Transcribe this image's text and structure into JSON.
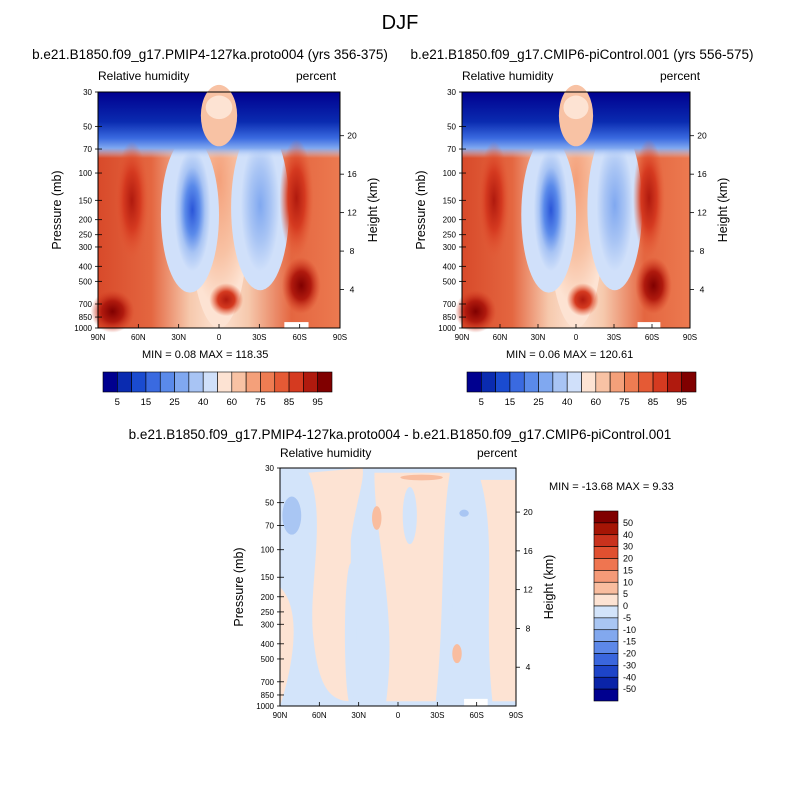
{
  "season": "DJF",
  "chart_data": [
    {
      "type": "heatmap",
      "title": "b.e21.B1850.f09_g17.PMIP4-127ka.proto004 (yrs 356-375)",
      "left_label": "Relative humidity",
      "right_label": "percent",
      "ylabel": "Pressure (mb)",
      "y2label": "Height (km)",
      "x_ticks": [
        "90N",
        "60N",
        "30N",
        "0",
        "30S",
        "60S",
        "90S"
      ],
      "y_ticks": [
        "30",
        "50",
        "70",
        "100",
        "150",
        "200",
        "250",
        "300",
        "400",
        "500",
        "700",
        "850",
        "1000"
      ],
      "y2_ticks": [
        "20",
        "16",
        "12",
        "8",
        "4"
      ],
      "min": 0.08,
      "max": 118.35,
      "stats_text": "MIN =   0.08  MAX = 118.35",
      "colorbar_labels": [
        "5",
        "15",
        "25",
        "40",
        "60",
        "75",
        "85",
        "95"
      ]
    },
    {
      "type": "heatmap",
      "title": "b.e21.B1850.f09_g17.CMIP6-piControl.001 (yrs 556-575)",
      "left_label": "Relative humidity",
      "right_label": "percent",
      "ylabel": "Pressure (mb)",
      "y2label": "Height (km)",
      "x_ticks": [
        "90N",
        "60N",
        "30N",
        "0",
        "30S",
        "60S",
        "90S"
      ],
      "y_ticks": [
        "30",
        "50",
        "70",
        "100",
        "150",
        "200",
        "250",
        "300",
        "400",
        "500",
        "700",
        "850",
        "1000"
      ],
      "y2_ticks": [
        "20",
        "16",
        "12",
        "8",
        "4"
      ],
      "min": 0.06,
      "max": 120.61,
      "stats_text": "MIN =   0.06  MAX = 120.61",
      "colorbar_labels": [
        "5",
        "15",
        "25",
        "40",
        "60",
        "75",
        "85",
        "95"
      ]
    },
    {
      "type": "heatmap",
      "title": "b.e21.B1850.f09_g17.PMIP4-127ka.proto004 - b.e21.B1850.f09_g17.CMIP6-piControl.001",
      "left_label": "Relative humidity",
      "right_label": "percent",
      "ylabel": "Pressure (mb)",
      "y2label": "Height (km)",
      "x_ticks": [
        "90N",
        "60N",
        "30N",
        "0",
        "30S",
        "60S",
        "90S"
      ],
      "y_ticks": [
        "30",
        "50",
        "70",
        "100",
        "150",
        "200",
        "250",
        "300",
        "400",
        "500",
        "700",
        "850",
        "1000"
      ],
      "y2_ticks": [
        "20",
        "16",
        "12",
        "8",
        "4"
      ],
      "min": -13.68,
      "max": 9.33,
      "stats_text": "MIN = -13.68  MAX =   9.33",
      "colorbar_labels": [
        "50",
        "40",
        "30",
        "20",
        "15",
        "10",
        "5",
        "0",
        "-5",
        "-10",
        "-15",
        "-20",
        "-30",
        "-40",
        "-50"
      ]
    }
  ],
  "colors": {
    "main_scale": [
      "#00008f",
      "#0a2bb0",
      "#1a4bd0",
      "#3a6ae0",
      "#5a8aea",
      "#80a8f0",
      "#a8c4f4",
      "#d0e0fa",
      "#fde3d3",
      "#f8c2a4",
      "#f4a07a",
      "#ee7c52",
      "#e55a35",
      "#d53a20",
      "#b01a0e",
      "#800000"
    ],
    "diff_scale": [
      "#800000",
      "#a51505",
      "#c9321d",
      "#e05030",
      "#ef7550",
      "#f59a78",
      "#f9bd9f",
      "#fde3d3",
      "#d3e4fa",
      "#a9c6f3",
      "#82a8ee",
      "#5d88e8",
      "#3a66dd",
      "#1d44c8",
      "#0a24a8",
      "#00008f"
    ]
  }
}
